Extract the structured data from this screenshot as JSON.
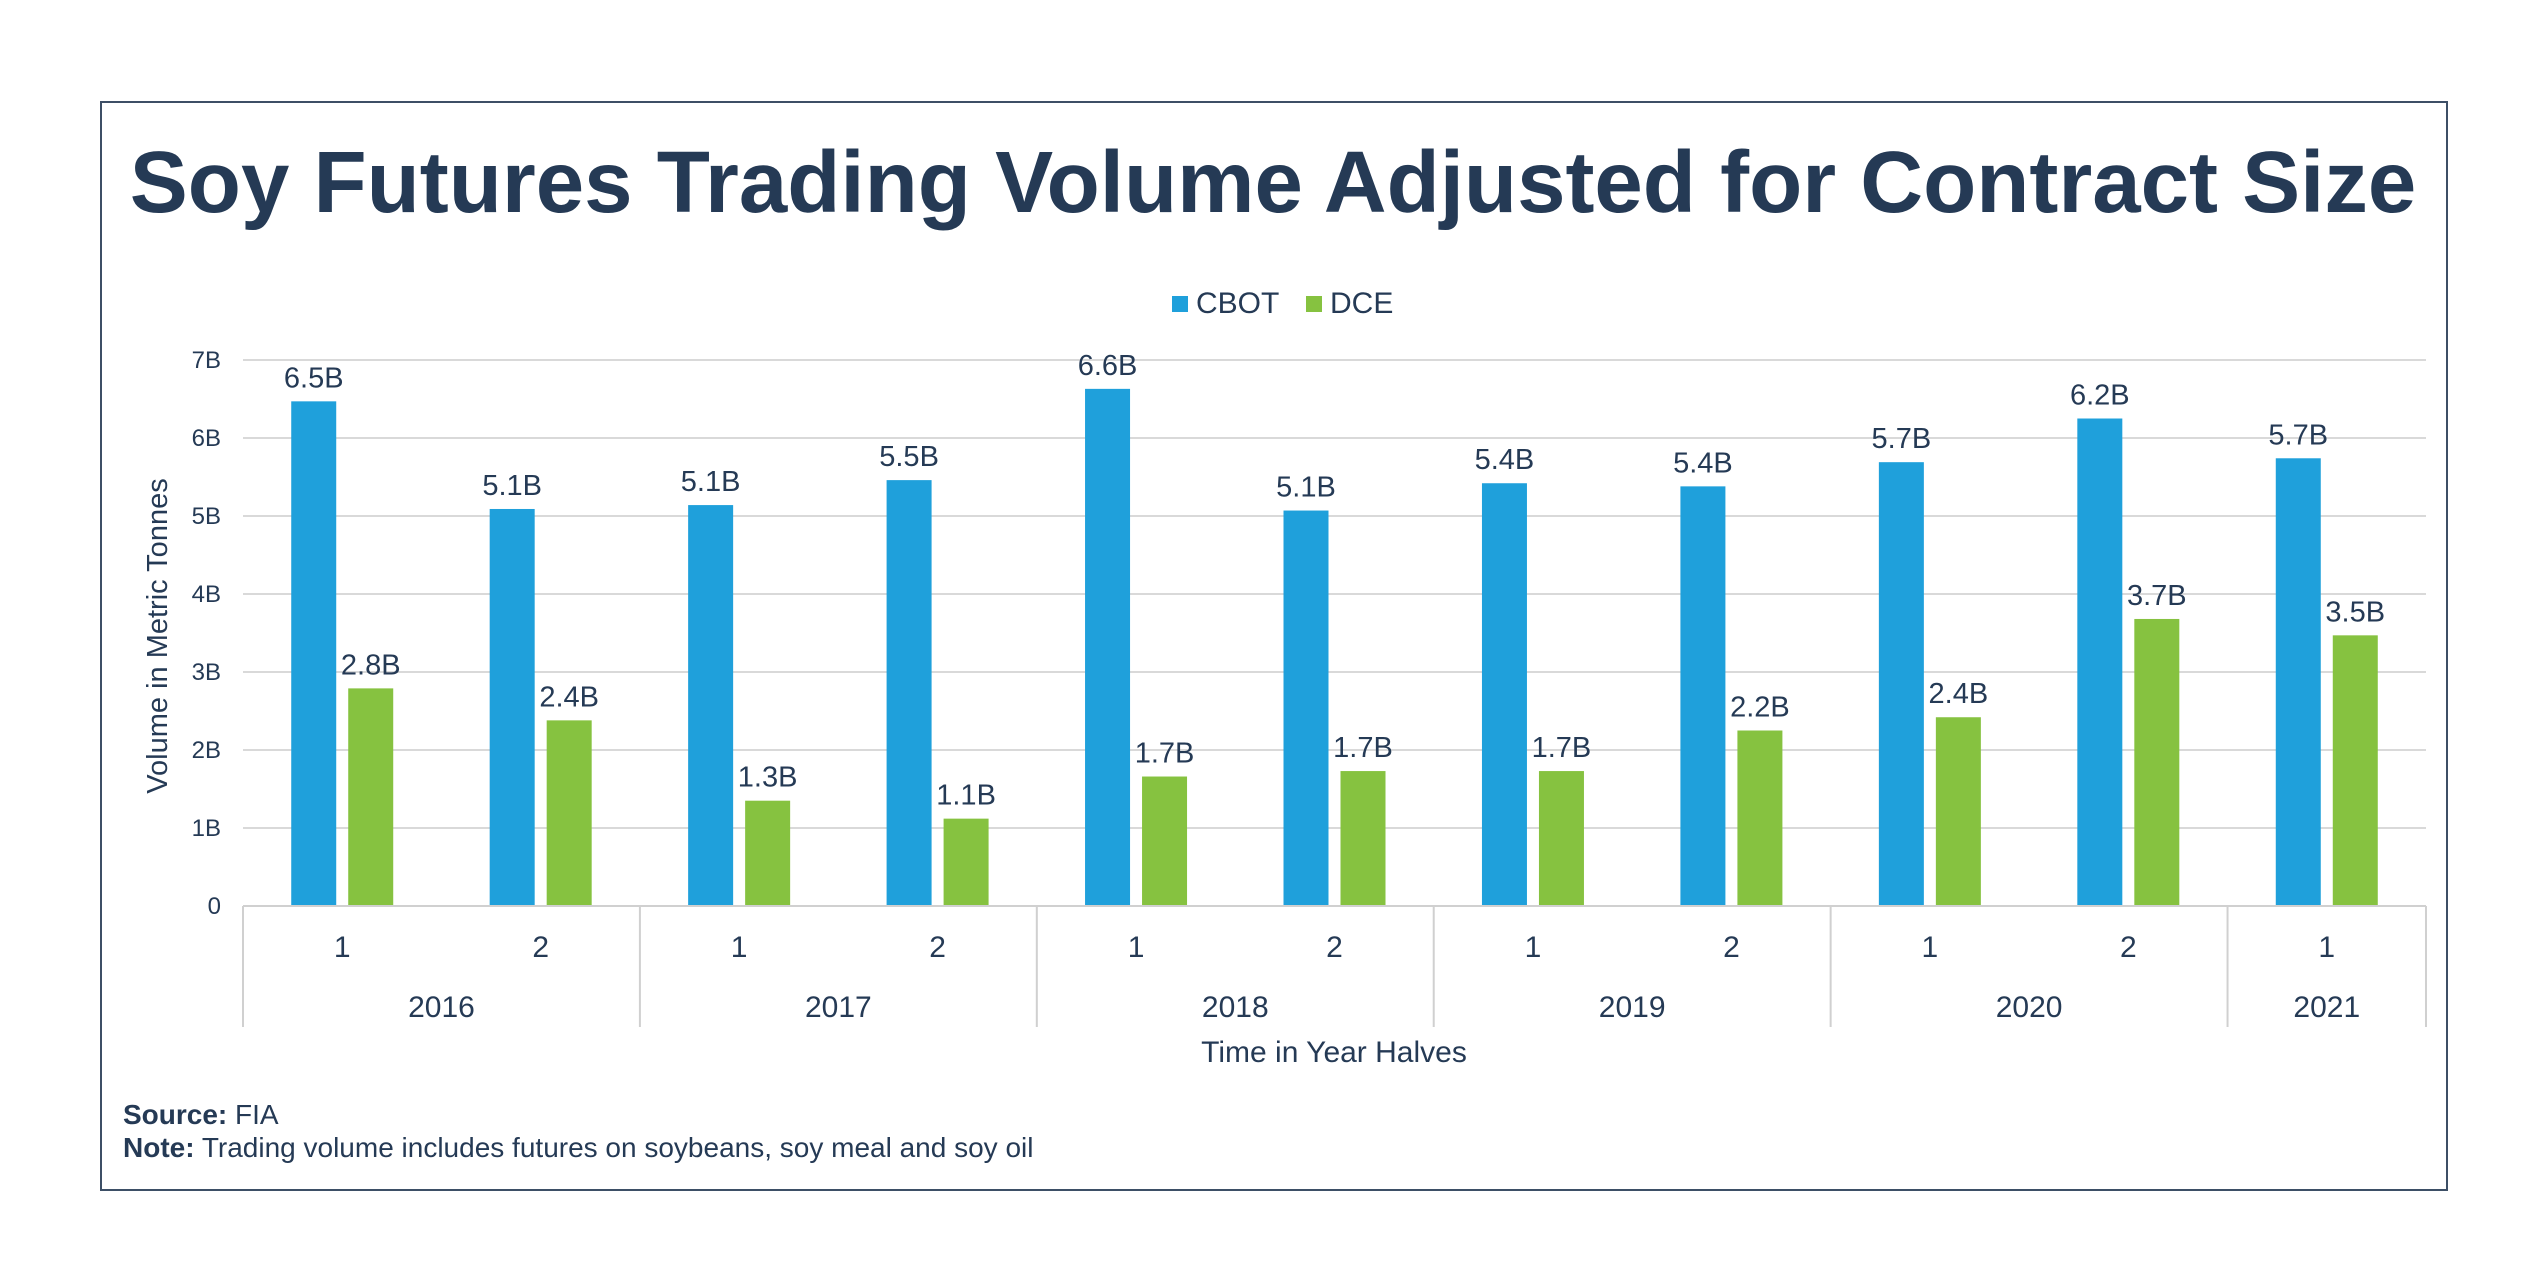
{
  "chart_data": {
    "type": "bar",
    "title": "Soy Futures Trading Volume Adjusted for Contract Size",
    "xlabel": "Time in Year Halves",
    "ylabel": "Volume in Metric Tonnes",
    "ylim": [
      0,
      7
    ],
    "y_ticks": [
      "0",
      "1B",
      "2B",
      "3B",
      "4B",
      "5B",
      "6B",
      "7B"
    ],
    "grid": true,
    "legend_position": "top",
    "categories": [
      {
        "half": "1",
        "year": "2016"
      },
      {
        "half": "2",
        "year": "2016"
      },
      {
        "half": "1",
        "year": "2017"
      },
      {
        "half": "2",
        "year": "2017"
      },
      {
        "half": "1",
        "year": "2018"
      },
      {
        "half": "2",
        "year": "2018"
      },
      {
        "half": "1",
        "year": "2019"
      },
      {
        "half": "2",
        "year": "2019"
      },
      {
        "half": "1",
        "year": "2020"
      },
      {
        "half": "2",
        "year": "2020"
      },
      {
        "half": "1",
        "year": "2021"
      }
    ],
    "years": [
      "2016",
      "2017",
      "2018",
      "2019",
      "2020",
      "2021"
    ],
    "series": [
      {
        "name": "CBOT",
        "color": "#1fa0db",
        "values": [
          6.47,
          5.09,
          5.14,
          5.46,
          6.63,
          5.07,
          5.42,
          5.38,
          5.69,
          6.25,
          5.74
        ],
        "labels": [
          "6.5B",
          "5.1B",
          "5.1B",
          "5.5B",
          "6.6B",
          "5.1B",
          "5.4B",
          "5.4B",
          "5.7B",
          "6.2B",
          "5.7B"
        ]
      },
      {
        "name": "DCE",
        "color": "#86c240",
        "values": [
          2.79,
          2.38,
          1.35,
          1.12,
          1.66,
          1.73,
          1.73,
          2.25,
          2.42,
          3.68,
          3.47
        ],
        "labels": [
          "2.8B",
          "2.4B",
          "1.3B",
          "1.1B",
          "1.7B",
          "1.7B",
          "1.7B",
          "2.2B",
          "2.4B",
          "3.7B",
          "3.5B"
        ]
      }
    ]
  },
  "footer": {
    "source_label": "Source:",
    "source_text": "FIA",
    "note_label": "Note:",
    "note_text": "Trading volume includes futures on soybeans, soy meal and soy oil"
  }
}
